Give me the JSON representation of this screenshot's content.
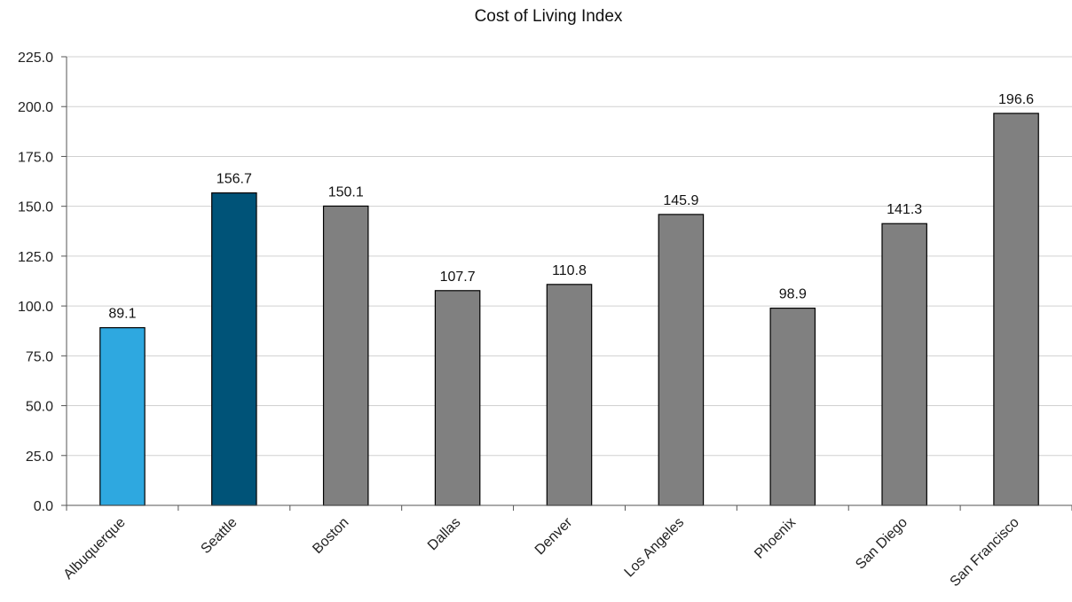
{
  "chart_data": {
    "type": "bar",
    "title": "Cost of Living Index",
    "xlabel": "",
    "ylabel": "",
    "ylim": [
      0,
      225
    ],
    "yticks": [
      "0.0",
      "25.0",
      "50.0",
      "75.0",
      "100.0",
      "125.0",
      "150.0",
      "175.0",
      "200.0",
      "225.0"
    ],
    "grid": true,
    "categories": [
      "Albuquerque",
      "Seattle",
      "Boston",
      "Dallas",
      "Denver",
      "Los Angeles",
      "Phoenix",
      "San Diego",
      "San Francisco"
    ],
    "values": [
      89.1,
      156.7,
      150.1,
      107.7,
      110.8,
      145.9,
      98.9,
      141.3,
      196.6
    ],
    "data_labels": [
      "89.1",
      "156.7",
      "150.1",
      "107.7",
      "110.8",
      "145.9",
      "98.9",
      "141.3",
      "196.6"
    ],
    "colors": [
      "#2ea8e0",
      "#005378",
      "#808080",
      "#808080",
      "#808080",
      "#808080",
      "#808080",
      "#808080",
      "#808080"
    ]
  }
}
